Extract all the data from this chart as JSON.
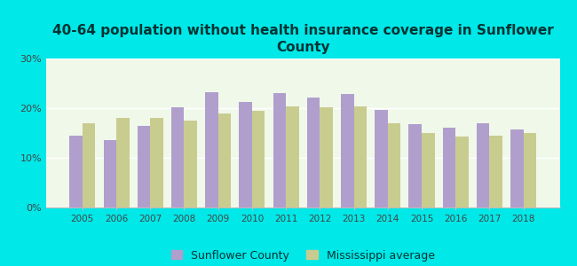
{
  "title": "40-64 population without health insurance coverage in Sunflower\nCounty",
  "years": [
    2005,
    2006,
    2007,
    2008,
    2009,
    2010,
    2011,
    2012,
    2013,
    2014,
    2015,
    2016,
    2017,
    2018
  ],
  "sunflower": [
    14.5,
    13.5,
    16.5,
    20.2,
    23.2,
    21.3,
    23.1,
    22.1,
    22.8,
    19.7,
    16.8,
    16.0,
    17.0,
    15.7
  ],
  "mississippi": [
    17.0,
    18.0,
    18.0,
    17.5,
    18.9,
    19.5,
    20.3,
    20.2,
    20.3,
    17.0,
    15.0,
    14.2,
    14.5,
    15.0
  ],
  "sunflower_color": "#b09fcc",
  "mississippi_color": "#c8cc8f",
  "background_outer": "#00e8e8",
  "background_plot_top": "#e8f5e0",
  "background_plot_bottom": "#ffffff",
  "ylim": [
    0,
    30
  ],
  "yticks": [
    0,
    10,
    20,
    30
  ],
  "title_color": "#003333",
  "tick_color": "#444444",
  "legend_sunflower": "Sunflower County",
  "legend_mississippi": "Mississippi average",
  "bar_width": 0.38
}
